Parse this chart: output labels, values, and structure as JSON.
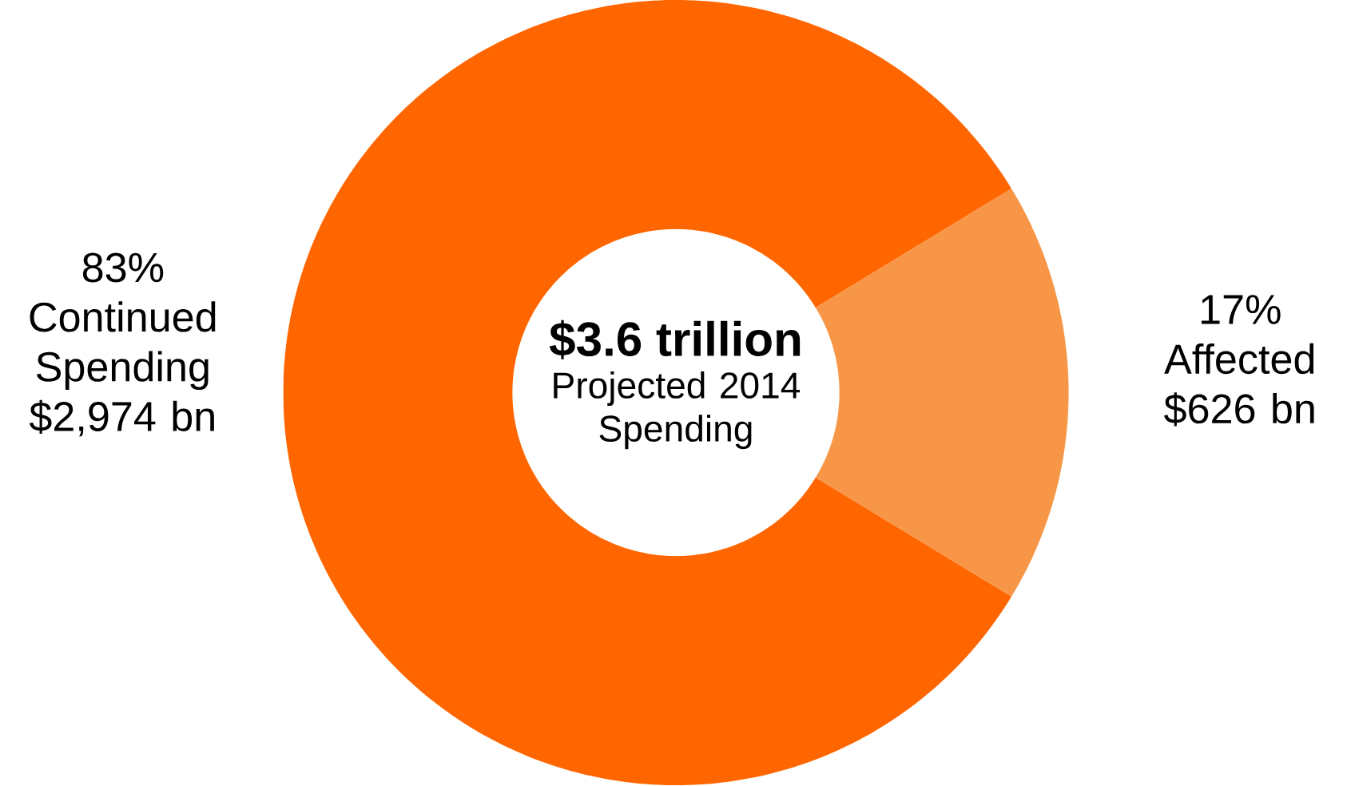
{
  "chart_data": {
    "type": "donut",
    "title": "$3.6 trillion",
    "subtitle": "Projected 2014 Spending",
    "categories": [
      "Continued Spending",
      "Affected"
    ],
    "values": [
      2974,
      626
    ],
    "colors": [
      "#ff6600",
      "#f79646"
    ],
    "value_labels": [
      "$2,974 bn",
      "$626 bn"
    ],
    "annotations": [
      "83%",
      "17%"
    ]
  }
}
